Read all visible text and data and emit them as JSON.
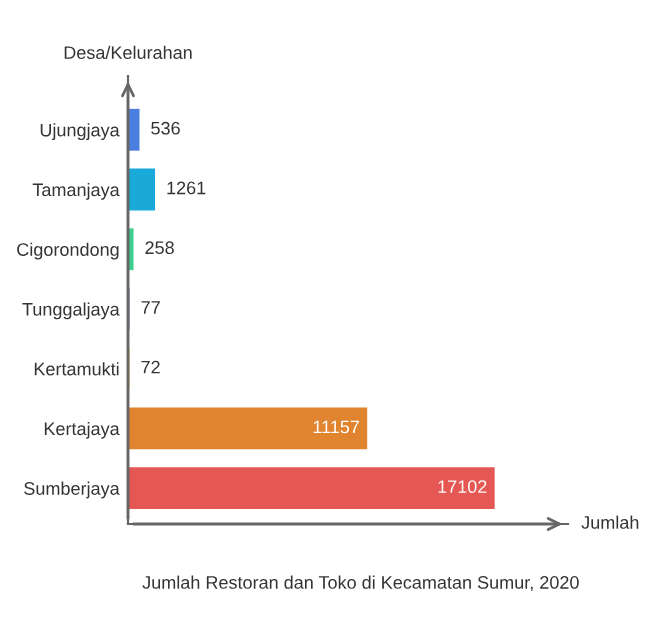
{
  "chart_data": {
    "type": "bar",
    "orientation": "horizontal",
    "title": "Jumlah Restoran dan Toko di Kecamatan Sumur, 2020",
    "xlabel": "Jumlah",
    "ylabel": "Desa/Kelurahan",
    "categories": [
      "Ujungjaya",
      "Tamanjaya",
      "Cigorondong",
      "Tunggaljaya",
      "Kertamukti",
      "Kertajaya",
      "Sumberjaya"
    ],
    "values": [
      536,
      1261,
      258,
      77,
      72,
      11157,
      17102
    ],
    "colors": [
      "#4a7fe0",
      "#1aaad9",
      "#3ecf8e",
      "#9b6fd6",
      "#f2c14e",
      "#e08430",
      "#e55753"
    ],
    "data_labels": true,
    "grid": false,
    "legend": false
  }
}
